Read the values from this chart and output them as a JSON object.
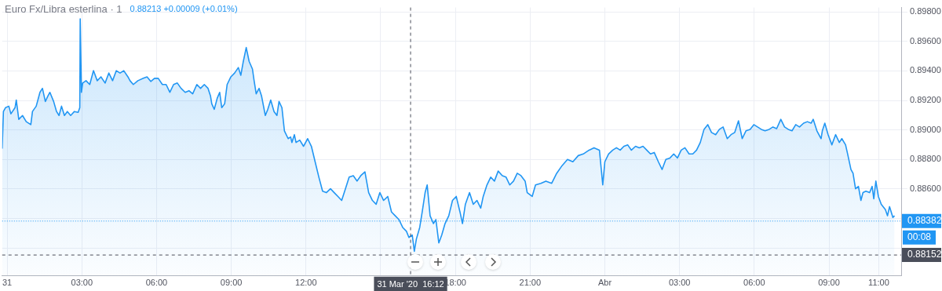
{
  "chart_data": {
    "type": "area",
    "title": "Euro Fx/Libra esterlina · 1",
    "subtitle": "0.88213 +0.00009 (+0.01%)",
    "x": [
      "2020-03-30T23:48",
      "2020-03-30T23:51",
      "2020-03-30T23:56",
      "2020-03-31T00:04",
      "2020-03-31T00:09",
      "2020-03-31T00:19",
      "2020-03-31T00:22",
      "2020-03-31T00:28",
      "2020-03-31T00:37",
      "2020-03-31T00:46",
      "2020-03-31T00:57",
      "2020-03-31T01:01",
      "2020-03-31T01:10",
      "2020-03-31T01:19",
      "2020-03-31T01:25",
      "2020-03-31T01:32",
      "2020-03-31T01:38",
      "2020-03-31T01:43",
      "2020-03-31T01:52",
      "2020-03-31T01:59",
      "2020-03-31T02:05",
      "2020-03-31T02:11",
      "2020-03-31T02:18",
      "2020-03-31T02:25",
      "2020-03-31T02:33",
      "2020-03-31T02:42",
      "2020-03-31T02:51",
      "2020-03-31T02:55",
      "2020-03-31T02:56",
      "2020-03-31T02:59",
      "2020-03-31T03:02",
      "2020-03-31T03:10",
      "2020-03-31T03:19",
      "2020-03-31T03:28",
      "2020-03-31T03:37",
      "2020-03-31T03:46",
      "2020-03-31T03:56",
      "2020-03-31T04:05",
      "2020-03-31T04:14",
      "2020-03-31T04:23",
      "2020-03-31T04:32",
      "2020-03-31T04:41",
      "2020-03-31T04:51",
      "2020-03-31T04:56",
      "2020-03-31T05:04",
      "2020-03-31T05:15",
      "2020-03-31T05:28",
      "2020-03-31T05:37",
      "2020-03-31T05:46",
      "2020-03-31T05:55",
      "2020-03-31T06:04",
      "2020-03-31T06:14",
      "2020-03-31T06:23",
      "2020-03-31T06:32",
      "2020-03-31T06:41",
      "2020-03-31T06:50",
      "2020-03-31T06:59",
      "2020-03-31T07:09",
      "2020-03-31T07:18",
      "2020-03-31T07:27",
      "2020-03-31T07:37",
      "2020-03-31T07:46",
      "2020-03-31T07:55",
      "2020-03-31T08:04",
      "2020-03-31T08:10",
      "2020-03-31T08:13",
      "2020-03-31T08:19",
      "2020-03-31T08:26",
      "2020-03-31T08:32",
      "2020-03-31T08:37",
      "2020-03-31T08:44",
      "2020-03-31T08:50",
      "2020-03-31T08:59",
      "2020-03-31T09:08",
      "2020-03-31T09:17",
      "2020-03-31T09:23",
      "2020-03-31T09:29",
      "2020-03-31T09:36",
      "2020-03-31T09:43",
      "2020-03-31T09:51",
      "2020-03-31T09:55",
      "2020-03-31T10:00",
      "2020-03-31T10:07",
      "2020-03-31T10:13",
      "2020-03-31T10:22",
      "2020-03-31T10:28",
      "2020-03-31T10:35",
      "2020-03-31T10:43",
      "2020-03-31T10:50",
      "2020-03-31T10:55",
      "2020-03-31T11:02",
      "2020-03-31T11:08",
      "2020-03-31T11:17",
      "2020-03-31T11:23",
      "2020-03-31T11:26",
      "2020-03-31T11:32",
      "2020-03-31T11:36",
      "2020-03-31T11:45",
      "2020-03-31T11:54",
      "2020-03-31T12:04",
      "2020-03-31T12:13",
      "2020-03-31T12:22",
      "2020-03-31T12:31",
      "2020-03-31T12:40",
      "2020-03-31T12:49",
      "2020-03-31T12:59",
      "2020-03-31T13:08",
      "2020-03-31T13:17",
      "2020-03-31T13:26",
      "2020-03-31T13:35",
      "2020-03-31T13:44",
      "2020-03-31T13:54",
      "2020-03-31T14:03",
      "2020-03-31T14:12",
      "2020-03-31T14:22",
      "2020-03-31T14:31",
      "2020-03-31T14:40",
      "2020-03-31T14:49",
      "2020-03-31T14:58",
      "2020-03-31T15:07",
      "2020-03-31T15:17",
      "2020-03-31T15:26",
      "2020-03-31T15:35",
      "2020-03-31T15:44",
      "2020-03-31T15:53",
      "2020-03-31T16:02",
      "2020-03-31T16:08",
      "2020-03-31T16:16",
      "2020-03-31T16:21",
      "2020-03-31T16:26",
      "2020-03-31T16:34",
      "2020-03-31T16:40",
      "2020-03-31T16:47",
      "2020-03-31T16:52",
      "2020-03-31T16:59",
      "2020-03-31T17:07",
      "2020-03-31T17:13",
      "2020-03-31T17:20",
      "2020-03-31T17:27",
      "2020-03-31T17:35",
      "2020-03-31T17:44",
      "2020-03-31T17:53",
      "2020-03-31T18:02",
      "2020-03-31T18:11",
      "2020-03-31T18:17",
      "2020-03-31T18:24",
      "2020-03-31T18:34",
      "2020-03-31T18:43",
      "2020-03-31T18:52",
      "2020-03-31T19:01",
      "2020-03-31T19:07",
      "2020-03-31T19:16",
      "2020-03-31T19:25",
      "2020-03-31T19:34",
      "2020-03-31T19:43",
      "2020-03-31T19:53",
      "2020-03-31T20:02",
      "2020-03-31T20:11",
      "2020-03-31T20:20",
      "2020-03-31T20:29",
      "2020-03-31T20:38",
      "2020-03-31T20:48",
      "2020-03-31T20:53",
      "2020-03-31T21:05",
      "2020-03-31T21:13",
      "2020-03-31T21:26",
      "2020-03-31T21:38",
      "2020-03-31T21:52",
      "2020-03-31T22:04",
      "2020-03-31T22:17",
      "2020-03-31T22:30",
      "2020-03-31T22:43",
      "2020-03-31T22:56",
      "2020-03-31T23:08",
      "2020-03-31T23:22",
      "2020-03-31T23:34",
      "2020-03-31T23:47",
      "2020-03-31T23:55",
      "2020-04-01T00:00",
      "2020-04-01T00:09",
      "2020-04-01T00:19",
      "2020-04-01T00:28",
      "2020-04-01T00:37",
      "2020-04-01T00:46",
      "2020-04-01T00:55",
      "2020-04-01T01:04",
      "2020-04-01T01:14",
      "2020-04-01T01:23",
      "2020-04-01T01:32",
      "2020-04-01T01:41",
      "2020-04-01T01:50",
      "2020-04-01T01:59",
      "2020-04-01T02:09",
      "2020-04-01T02:18",
      "2020-04-01T02:27",
      "2020-04-01T02:37",
      "2020-04-01T02:46",
      "2020-04-01T02:55",
      "2020-04-01T03:04",
      "2020-04-01T03:13",
      "2020-04-01T03:23",
      "2020-04-01T03:32",
      "2020-04-01T03:41",
      "2020-04-01T03:50",
      "2020-04-01T03:59",
      "2020-04-01T04:08",
      "2020-04-01T04:17",
      "2020-04-01T04:27",
      "2020-04-01T04:36",
      "2020-04-01T04:45",
      "2020-04-01T04:55",
      "2020-04-01T05:04",
      "2020-04-01T05:13",
      "2020-04-01T05:22",
      "2020-04-01T05:31",
      "2020-04-01T05:40",
      "2020-04-01T05:50",
      "2020-04-01T05:59",
      "2020-04-01T06:08",
      "2020-04-01T06:17",
      "2020-04-01T06:26",
      "2020-04-01T06:36",
      "2020-04-01T06:45",
      "2020-04-01T06:54",
      "2020-04-01T07:04",
      "2020-04-01T07:13",
      "2020-04-01T07:22",
      "2020-04-01T07:31",
      "2020-04-01T07:40",
      "2020-04-01T07:49",
      "2020-04-01T07:59",
      "2020-04-01T08:08",
      "2020-04-01T08:17",
      "2020-04-01T08:22",
      "2020-04-01T08:31",
      "2020-04-01T08:41",
      "2020-04-01T08:44",
      "2020-04-01T08:50",
      "2020-04-01T08:58",
      "2020-04-01T09:07",
      "2020-04-01T09:16",
      "2020-04-01T09:25",
      "2020-04-01T09:31",
      "2020-04-01T09:40",
      "2020-04-01T09:45",
      "2020-04-01T09:53",
      "2020-04-01T09:58",
      "2020-04-01T10:04",
      "2020-04-01T10:11",
      "2020-04-01T10:17",
      "2020-04-01T10:22",
      "2020-04-01T10:29",
      "2020-04-01T10:38",
      "2020-04-01T10:44",
      "2020-04-01T10:48",
      "2020-04-01T10:53",
      "2020-04-01T10:59",
      "2020-04-01T11:06",
      "2020-04-01T11:16",
      "2020-04-01T11:21",
      "2020-04-01T11:26",
      "2020-04-01T11:34",
      "2020-04-01T11:38"
    ],
    "series": [
      {
        "color": "#2196f3",
        "values": [
          0.88873,
          0.89125,
          0.89151,
          0.89161,
          0.89109,
          0.89151,
          0.89203,
          0.89072,
          0.89098,
          0.89056,
          0.89036,
          0.89125,
          0.89161,
          0.89255,
          0.89282,
          0.89193,
          0.89229,
          0.89255,
          0.89193,
          0.89125,
          0.89098,
          0.89161,
          0.89098,
          0.89125,
          0.89098,
          0.89125,
          0.89119,
          0.89151,
          0.89753,
          0.89255,
          0.89318,
          0.89334,
          0.89308,
          0.89402,
          0.89334,
          0.8936,
          0.89318,
          0.89386,
          0.89334,
          0.89402,
          0.89386,
          0.89402,
          0.8936,
          0.89334,
          0.89308,
          0.89334,
          0.8935,
          0.8936,
          0.89329,
          0.8935,
          0.8935,
          0.89308,
          0.89308,
          0.89255,
          0.89308,
          0.89318,
          0.89282,
          0.89255,
          0.89266,
          0.89245,
          0.89308,
          0.89282,
          0.89308,
          0.89282,
          0.89229,
          0.89177,
          0.8914,
          0.89214,
          0.89255,
          0.89151,
          0.89177,
          0.89308,
          0.8936,
          0.89386,
          0.89423,
          0.89371,
          0.89465,
          0.89559,
          0.89465,
          0.89413,
          0.89334,
          0.89245,
          0.89282,
          0.89229,
          0.89098,
          0.8914,
          0.89203,
          0.89125,
          0.89098,
          0.89193,
          0.89151,
          0.88994,
          0.88941,
          0.88952,
          0.88915,
          0.88968,
          0.88915,
          0.88931,
          0.88889,
          0.88941,
          0.88889,
          0.88784,
          0.8868,
          0.88585,
          0.88575,
          0.88601,
          0.88575,
          0.88549,
          0.88522,
          0.88601,
          0.8868,
          0.8869,
          0.88653,
          0.8869,
          0.88716,
          0.88575,
          0.88522,
          0.88496,
          0.88575,
          0.88522,
          0.88549,
          0.88444,
          0.88418,
          0.88392,
          0.88339,
          0.88313,
          0.88271,
          0.88287,
          0.88177,
          0.88261,
          0.88339,
          0.88444,
          0.88575,
          0.88627,
          0.88418,
          0.88365,
          0.88392,
          0.88234,
          0.88287,
          0.88365,
          0.88418,
          0.88522,
          0.88549,
          0.88444,
          0.88365,
          0.88496,
          0.88575,
          0.88496,
          0.88522,
          0.8847,
          0.88549,
          0.88627,
          0.8868,
          0.88653,
          0.88721,
          0.8869,
          0.8868,
          0.88627,
          0.88653,
          0.88706,
          0.8869,
          0.88653,
          0.88575,
          0.88549,
          0.88627,
          0.88638,
          0.88653,
          0.88638,
          0.88706,
          0.88758,
          0.888,
          0.88784,
          0.88826,
          0.88837,
          0.88863,
          0.88879,
          0.88863,
          0.88627,
          0.88784,
          0.88837,
          0.88863,
          0.88879,
          0.88863,
          0.88889,
          0.88899,
          0.88863,
          0.88889,
          0.88879,
          0.88889,
          0.88863,
          0.88837,
          0.88847,
          0.88784,
          0.88732,
          0.888,
          0.8881,
          0.88837,
          0.8881,
          0.88863,
          0.88879,
          0.88837,
          0.88837,
          0.88863,
          0.88915,
          0.89004,
          0.89036,
          0.88983,
          0.88968,
          0.89004,
          0.8902,
          0.88941,
          0.88968,
          0.88983,
          0.89062,
          0.88941,
          0.88994,
          0.89004,
          0.89036,
          0.8902,
          0.89004,
          0.88994,
          0.89004,
          0.8902,
          0.89009,
          0.89072,
          0.8902,
          0.89004,
          0.88994,
          0.89036,
          0.8902,
          0.89046,
          0.89056,
          0.89046,
          0.89072,
          0.88994,
          0.88941,
          0.88994,
          0.89046,
          0.88968,
          0.88899,
          0.88968,
          0.88915,
          0.88941,
          0.88899,
          0.88837,
          0.88732,
          0.88706,
          0.88601,
          0.88617,
          0.88522,
          0.88575,
          0.88585,
          0.88575,
          0.88617,
          0.88533,
          0.88653,
          0.88549,
          0.88496,
          0.8846,
          0.88418,
          0.8848,
          0.88407,
          0.88418
        ]
      }
    ],
    "xlim": [
      "2020-03-30T23:48",
      "2020-04-01T11:54"
    ],
    "xticks": [
      {
        "value": "2020-03-31",
        "label": "31"
      },
      {
        "value": "2020-03-31T03:00",
        "label": "03:00"
      },
      {
        "value": "2020-03-31T06:00",
        "label": "06:00"
      },
      {
        "value": "2020-03-31T09:00",
        "label": "09:00"
      },
      {
        "value": "2020-03-31T12:00",
        "label": "12:00"
      },
      {
        "value": "2020-03-31T15:00",
        "label": null
      },
      {
        "value": "2020-03-31T18:00",
        "label": "18:00"
      },
      {
        "value": "2020-03-31T21:00",
        "label": "21:00"
      },
      {
        "value": "2020-04-01",
        "label": "Abr"
      },
      {
        "value": "2020-04-01T03:00",
        "label": "03:00"
      },
      {
        "value": "2020-04-01T06:00",
        "label": "06:00"
      },
      {
        "value": "2020-04-01T09:00",
        "label": "09:00"
      },
      {
        "value": "2020-04-01T11:00",
        "label": "11:00"
      }
    ],
    "ylim": [
      0.8801,
      0.8983
    ],
    "yticks": [
      {
        "value": 0.882,
        "label": null
      },
      {
        "value": 0.884,
        "label": null
      },
      {
        "value": 0.886,
        "label": "0.88600"
      },
      {
        "value": 0.888,
        "label": "0.88800"
      },
      {
        "value": 0.89,
        "label": "0.89000"
      },
      {
        "value": 0.892,
        "label": "0.89200"
      },
      {
        "value": 0.894,
        "label": "0.89400"
      },
      {
        "value": 0.896,
        "label": "0.89600"
      },
      {
        "value": 0.898,
        "label": "0.89800"
      }
    ],
    "ref_lines": [
      {
        "axis": "x",
        "value": "2020-03-31T16:12",
        "label": "31 Mar '20  16:12",
        "color": "#4a4e5a",
        "line_style": "dashed"
      },
      {
        "axis": "y",
        "value": 0.88382,
        "label": "0.88382",
        "color": "#2196f3",
        "line_style": "dotted"
      },
      {
        "axis": "y",
        "value": 0.88152,
        "label": "0.88152",
        "color": "#4a4e5a",
        "line_style": "dashed"
      }
    ],
    "annotations": [
      "00:08"
    ],
    "grid": true,
    "legend": false,
    "marker": "none",
    "line_style": "solid"
  }
}
